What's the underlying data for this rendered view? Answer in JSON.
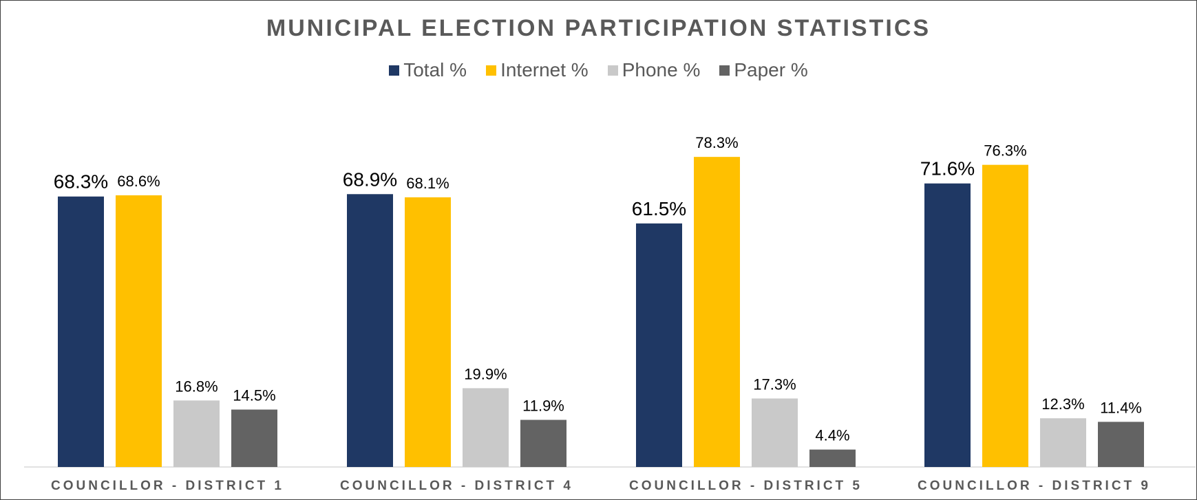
{
  "chart_data": {
    "type": "bar",
    "title": "MUNICIPAL ELECTION PARTICIPATION STATISTICS",
    "xlabel": "",
    "ylabel": "",
    "ylim": [
      0,
      90
    ],
    "grid": false,
    "legend_position": "top",
    "categories": [
      "COUNCILLOR - DISTRICT 1",
      "COUNCILLOR - DISTRICT 4",
      "COUNCILLOR - DISTRICT 5",
      "COUNCILLOR - DISTRICT 9"
    ],
    "series": [
      {
        "name": "Total %",
        "color": "#1f3864",
        "values": [
          68.3,
          68.9,
          61.5,
          71.6
        ],
        "labels": [
          "68.3%",
          "68.9%",
          "61.5%",
          "71.6%"
        ]
      },
      {
        "name": "Internet %",
        "color": "#ffc000",
        "values": [
          68.6,
          68.1,
          78.3,
          76.3
        ],
        "labels": [
          "68.6%",
          "68.1%",
          "78.3%",
          "76.3%"
        ]
      },
      {
        "name": "Phone %",
        "color": "#c9c9c9",
        "values": [
          16.8,
          19.9,
          17.3,
          12.3
        ],
        "labels": [
          "16.8%",
          "19.9%",
          "17.3%",
          "12.3%"
        ]
      },
      {
        "name": "Paper %",
        "color": "#636363",
        "values": [
          14.5,
          11.9,
          4.4,
          11.4
        ],
        "labels": [
          "14.5%",
          "11.9%",
          "4.4%",
          "11.4%"
        ]
      }
    ]
  }
}
